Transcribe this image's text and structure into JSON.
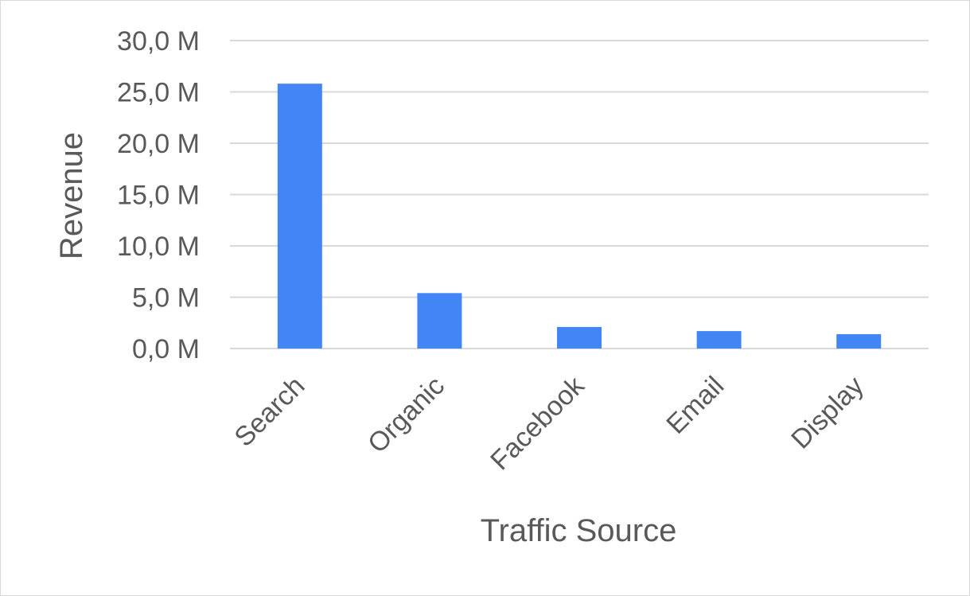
{
  "chart_data": {
    "type": "bar",
    "title": "",
    "xlabel": "Traffic Source",
    "ylabel": "Revenue",
    "categories": [
      "Search",
      "Organic",
      "Facebook",
      "Email",
      "Display"
    ],
    "values": [
      25.8,
      5.4,
      2.1,
      1.7,
      1.4
    ],
    "value_unit": "M",
    "ylim": [
      0,
      30
    ],
    "yticks": [
      0,
      5,
      10,
      15,
      20,
      25,
      30
    ],
    "ytick_labels": [
      "0,0 M",
      "5,0 M",
      "10,0 M",
      "15,0 M",
      "20,0 M",
      "25,0 M",
      "30,0 M"
    ],
    "grid": true,
    "legend": "none",
    "bar_color": "#4285f4",
    "grid_color": "#d9d9d9"
  }
}
